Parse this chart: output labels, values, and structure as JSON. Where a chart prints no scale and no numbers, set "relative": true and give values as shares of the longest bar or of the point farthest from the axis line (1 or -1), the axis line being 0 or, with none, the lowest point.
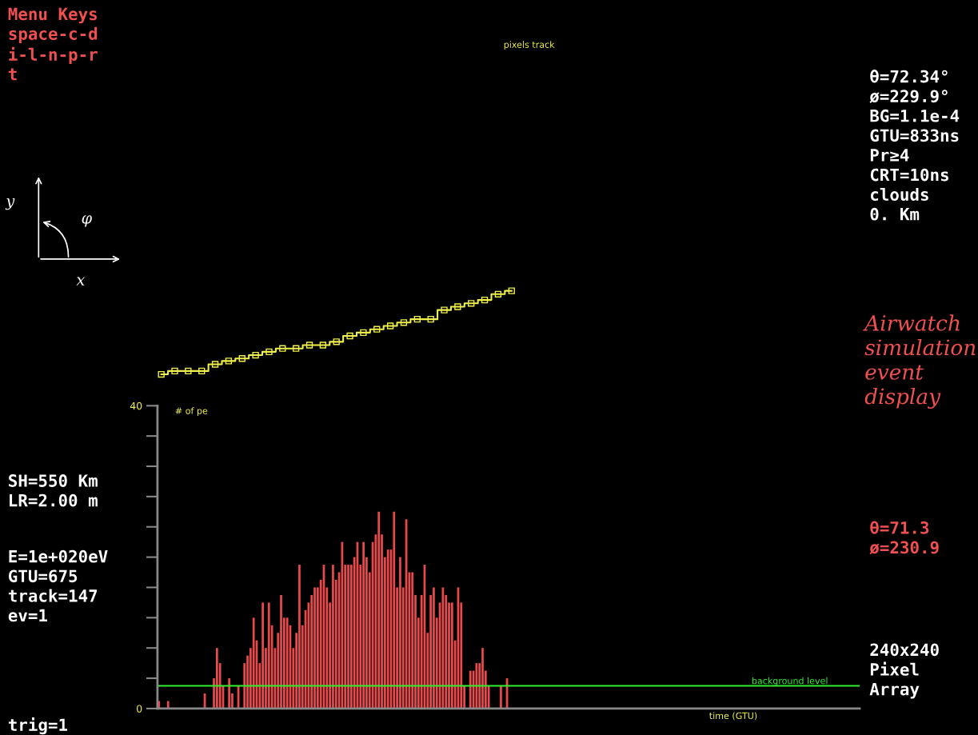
{
  "chart_data": [
    {
      "type": "step",
      "title": "pixels track",
      "relative": true,
      "marker": "square",
      "categories": [
        null,
        null,
        null,
        null,
        null,
        null,
        null,
        null,
        null,
        null,
        null,
        null,
        null,
        null,
        null,
        null,
        null,
        null,
        null,
        null,
        null,
        null,
        null,
        null,
        null,
        null,
        null
      ],
      "series": [
        {
          "color": "#f0f04a",
          "values": [
            0,
            0.04,
            0.04,
            0.04,
            0.12,
            0.16,
            0.19,
            0.23,
            0.27,
            0.31,
            0.31,
            0.35,
            0.35,
            0.39,
            0.46,
            0.5,
            0.54,
            0.58,
            0.62,
            0.66,
            0.66,
            0.77,
            0.81,
            0.85,
            0.89,
            0.96,
            1
          ]
        }
      ]
    },
    {
      "type": "bar",
      "ylabel": "# of pe",
      "xlabel": "time (GTU)",
      "ylim": [
        0,
        40
      ],
      "yticks": [
        0,
        {
          "value": 4,
          "label": null
        },
        {
          "value": 8,
          "label": null
        },
        {
          "value": 12,
          "label": null
        },
        {
          "value": 16,
          "label": null
        },
        {
          "value": 20,
          "label": null
        },
        {
          "value": 24,
          "label": null
        },
        {
          "value": 28,
          "label": null
        },
        {
          "value": 32,
          "label": null
        },
        {
          "value": 36,
          "label": null
        },
        40
      ],
      "categories": [
        null,
        null,
        null,
        null,
        null,
        null,
        null,
        null,
        null,
        null,
        null,
        null,
        null,
        null,
        null,
        null,
        null,
        null,
        null,
        null,
        null,
        null,
        null,
        null,
        null,
        null,
        null,
        null,
        null,
        null,
        null,
        null,
        null,
        null,
        null,
        null,
        null,
        null,
        null,
        null,
        null,
        null,
        null,
        null,
        null,
        null,
        null,
        null,
        null,
        null,
        null,
        null,
        null,
        null,
        null,
        null,
        null,
        null,
        null,
        null,
        null,
        null,
        null,
        null,
        null,
        null,
        null,
        null,
        null,
        null,
        null,
        null,
        null,
        null,
        null,
        null,
        null,
        null,
        null,
        null,
        null,
        null,
        null,
        null,
        null,
        null,
        null,
        null,
        null,
        null,
        null,
        null,
        null,
        null,
        null,
        null,
        null,
        null,
        null,
        null,
        null,
        null,
        null,
        null,
        null,
        null,
        null,
        null,
        null,
        null,
        null,
        null,
        null,
        null,
        null,
        null,
        null,
        null,
        null,
        null,
        null,
        null,
        null,
        null,
        null,
        null,
        null,
        null,
        null,
        null,
        null,
        null,
        null,
        null,
        null,
        null,
        null,
        null,
        null,
        null,
        null,
        null,
        null,
        null,
        null,
        null,
        null,
        null,
        null,
        null,
        null,
        null,
        null,
        null,
        null,
        null,
        null,
        null,
        null,
        null,
        null,
        null,
        null,
        null,
        null,
        null,
        null,
        null,
        null,
        null,
        null,
        null,
        null,
        null,
        null,
        null,
        null,
        null,
        null,
        null,
        null,
        null,
        null,
        null,
        null,
        null,
        null,
        null,
        null,
        null,
        null,
        null,
        null,
        null,
        null,
        null,
        null,
        null,
        null,
        null,
        null,
        null,
        null,
        null,
        null,
        null,
        null,
        null,
        null,
        null,
        null,
        null,
        null,
        null,
        null,
        null,
        null,
        null,
        null,
        null,
        null,
        null,
        null,
        null,
        null,
        null,
        null,
        null,
        null,
        null
      ],
      "color": "#e8494a",
      "values": [
        1,
        0,
        0,
        1,
        0,
        0,
        0,
        0,
        0,
        0,
        0,
        0,
        0,
        0,
        0,
        2,
        0,
        0,
        4,
        8,
        6,
        3,
        0,
        4,
        2,
        0,
        3,
        0,
        6,
        7,
        8,
        12,
        9,
        6,
        14,
        8,
        14,
        11,
        8,
        10,
        15,
        12,
        12,
        11,
        8,
        10,
        19,
        11,
        13,
        14,
        15,
        16,
        16,
        17,
        19,
        16,
        14,
        19,
        17,
        18,
        22,
        19,
        19,
        19,
        20,
        22,
        19,
        22,
        20,
        18,
        22,
        23,
        26,
        23,
        20,
        21,
        21,
        26,
        16,
        20,
        16,
        25,
        18,
        18,
        15,
        12,
        15,
        19,
        10,
        15,
        16,
        12,
        14,
        16,
        15,
        14,
        14,
        9,
        16,
        14,
        3,
        0,
        5,
        5,
        6,
        6,
        8,
        5,
        3,
        0,
        0,
        0,
        3,
        0,
        4,
        null,
        null,
        null,
        null,
        null,
        null,
        null,
        null,
        null,
        null,
        null,
        null,
        null,
        null,
        null,
        null,
        null,
        null,
        null,
        null,
        null,
        null,
        null,
        null,
        null,
        null,
        null,
        null,
        null,
        null,
        null,
        null,
        null,
        null,
        null,
        null,
        null,
        null,
        null,
        null,
        null,
        null,
        null,
        null,
        null,
        null,
        null,
        null,
        null,
        null,
        null,
        null,
        null,
        null,
        null,
        null,
        null,
        null,
        null,
        null,
        null,
        null,
        null,
        null,
        null,
        null,
        null,
        null,
        null,
        null,
        null,
        null,
        null,
        null,
        null,
        null,
        null,
        null,
        null,
        null,
        null,
        null,
        null,
        null,
        null,
        null,
        null,
        null,
        null,
        null,
        null,
        null,
        null,
        null,
        null,
        null,
        null,
        null,
        null,
        null,
        null,
        null,
        null,
        null,
        null,
        null,
        null,
        null,
        null,
        null,
        null,
        null,
        null,
        null,
        null
      ],
      "ref_lines": [
        {
          "axis": "y",
          "value": 3,
          "label": "background level",
          "color": "#33ee33"
        }
      ]
    },
    {
      "type": "other",
      "annotations": [
        "Menu Keys\nspace-c-d\ni-l-n-p-r\nt",
        "θ=72.34°\nø=229.9°\nBG=1.1e-4\nGTU=833ns\nPr≥4\nCRT=10ns\nclouds\n0. Km",
        "Airwatch\nsimulation\nevent\ndisplay",
        "SH=550 Km\nLR=2.00 m",
        "E=1e+020eV\nGTU=675\ntrack=147\nev=1",
        "θ=71.3\nø=230.9",
        "240x240\nPixel\nArray",
        "trig=1",
        "y",
        "x",
        "φ"
      ]
    }
  ]
}
